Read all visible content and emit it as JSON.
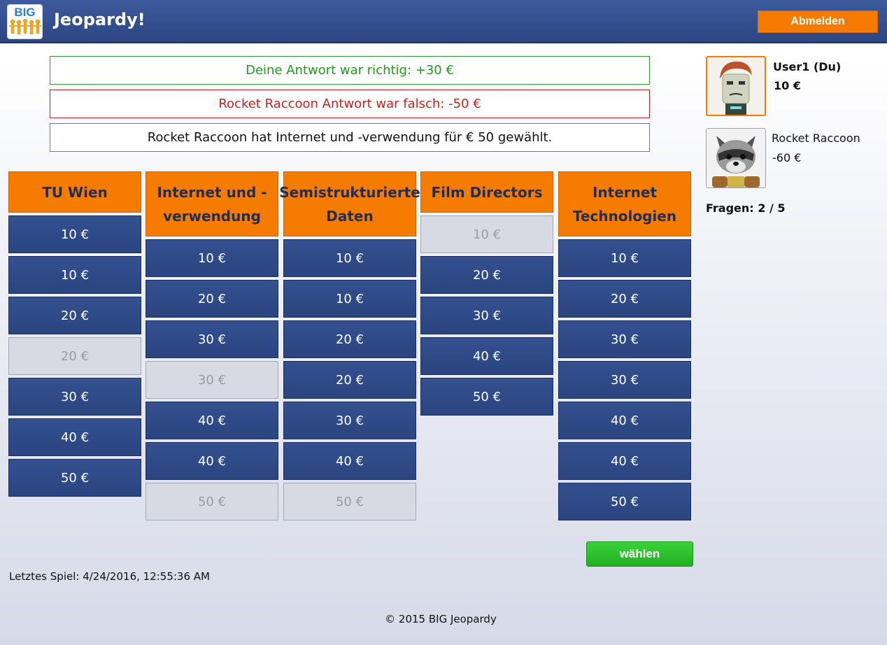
{
  "header": {
    "logo_text": "BIG",
    "title": "Jeopardy!",
    "logout_label": "Abmelden"
  },
  "messages": {
    "correct": "Deine Antwort war richtig: +30 €",
    "wrong": "Rocket Raccoon Antwort war falsch: -50 €",
    "info": "Rocket Raccoon hat Internet und -verwendung für € 50 gewählt."
  },
  "board": {
    "columns": [
      {
        "category": "TU Wien",
        "questions": [
          {
            "label": "10 €",
            "answered": false
          },
          {
            "label": "10 €",
            "answered": false
          },
          {
            "label": "20 €",
            "answered": false
          },
          {
            "label": "20 €",
            "answered": true
          },
          {
            "label": "30 €",
            "answered": false
          },
          {
            "label": "40 €",
            "answered": false
          },
          {
            "label": "50 €",
            "answered": false
          }
        ]
      },
      {
        "category": "Internet und -verwendung",
        "questions": [
          {
            "label": "10 €",
            "answered": false
          },
          {
            "label": "20 €",
            "answered": false
          },
          {
            "label": "30 €",
            "answered": false
          },
          {
            "label": "30 €",
            "answered": true
          },
          {
            "label": "40 €",
            "answered": false
          },
          {
            "label": "40 €",
            "answered": false
          },
          {
            "label": "50 €",
            "answered": true
          }
        ]
      },
      {
        "category": "Semistrukturierte Daten",
        "questions": [
          {
            "label": "10 €",
            "answered": false
          },
          {
            "label": "10 €",
            "answered": false
          },
          {
            "label": "20 €",
            "answered": false
          },
          {
            "label": "20 €",
            "answered": false
          },
          {
            "label": "30 €",
            "answered": false
          },
          {
            "label": "40 €",
            "answered": false
          },
          {
            "label": "50 €",
            "answered": true
          }
        ]
      },
      {
        "category": "Film Directors",
        "questions": [
          {
            "label": "10 €",
            "answered": true
          },
          {
            "label": "20 €",
            "answered": false
          },
          {
            "label": "30 €",
            "answered": false
          },
          {
            "label": "40 €",
            "answered": false
          },
          {
            "label": "50 €",
            "answered": false
          }
        ]
      },
      {
        "category": "Internet Technologien",
        "questions": [
          {
            "label": "10 €",
            "answered": false
          },
          {
            "label": "20 €",
            "answered": false
          },
          {
            "label": "30 €",
            "answered": false
          },
          {
            "label": "30 €",
            "answered": false
          },
          {
            "label": "40 €",
            "answered": false
          },
          {
            "label": "40 €",
            "answered": false
          },
          {
            "label": "50 €",
            "answered": false
          }
        ]
      }
    ]
  },
  "players": {
    "me": {
      "name": "User1 (Du)",
      "score": "10 €"
    },
    "opponent": {
      "name": "Rocket Raccoon",
      "score": "-60 €"
    }
  },
  "questions_progress": "Fragen: 2 / 5",
  "choose_label": "wählen",
  "last_game": "Letztes Spiel: 4/24/2016, 12:55:36 AM",
  "footer": "© 2015 BIG Jeopardy",
  "colors": {
    "header": "#2f4a88",
    "category": "#f57c00",
    "cell": "#2f4a88",
    "cell_used": "#d7dae3",
    "correct": "#1f9a1f",
    "wrong": "#c81e1e",
    "choose": "#22b022"
  }
}
